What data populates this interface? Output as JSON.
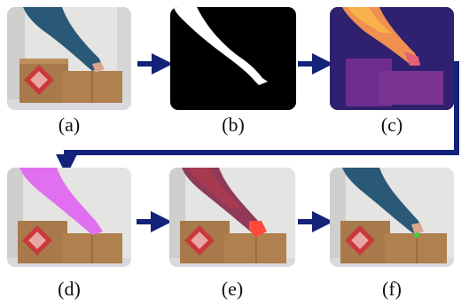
{
  "panels": [
    {
      "label": "(a)",
      "kind": "rgb"
    },
    {
      "label": "(b)",
      "kind": "mask"
    },
    {
      "label": "(c)",
      "kind": "depth"
    },
    {
      "label": "(d)",
      "kind": "segmented-arm"
    },
    {
      "label": "(e)",
      "kind": "heat-overlay"
    },
    {
      "label": "(f)",
      "kind": "touch-point"
    }
  ],
  "colors": {
    "arrow": "#14227a",
    "sleeve": "#2a5877",
    "box": "#a8794a",
    "wall": "#e4e4e2",
    "mask_fg": "#ffffff",
    "mask_bg": "#000000",
    "depth_bg": "#2a1b66",
    "magenta": "#e070f0",
    "highlight": "#d9232a",
    "touch_dot": "#3ecf3e"
  }
}
